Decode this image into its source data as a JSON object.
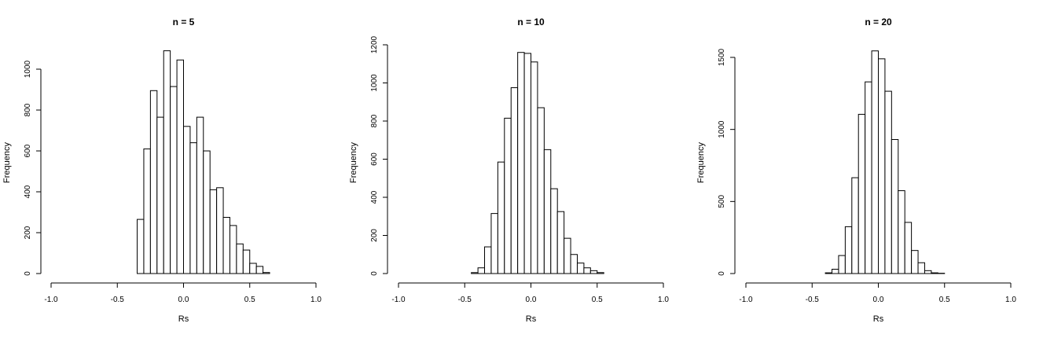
{
  "chart_data": [
    {
      "type": "bar",
      "title": "n = 5",
      "xlabel": "Rs",
      "ylabel": "Frequency",
      "xlim": [
        -1.0,
        1.0
      ],
      "xticks": [
        -1.0,
        -0.5,
        0.0,
        0.5,
        1.0
      ],
      "xtick_labels": [
        "-1.0",
        "-0.5",
        "0.0",
        "0.5",
        "1.0"
      ],
      "ylim": [
        0,
        1000
      ],
      "yticks": [
        0,
        200,
        400,
        600,
        800,
        1000
      ],
      "ytick_labels": [
        "0",
        "200",
        "400",
        "600",
        "800",
        "1000"
      ],
      "bin_width": 0.05,
      "bin_start": -0.35,
      "values": [
        265,
        610,
        895,
        765,
        1090,
        915,
        1045,
        720,
        640,
        765,
        600,
        410,
        420,
        275,
        235,
        145,
        115,
        50,
        35,
        5
      ],
      "grid": false,
      "legend": "none"
    },
    {
      "type": "bar",
      "title": "n = 10",
      "xlabel": "Rs",
      "ylabel": "Frequency",
      "xlim": [
        -1.0,
        1.0
      ],
      "xticks": [
        -1.0,
        -0.5,
        0.0,
        0.5,
        1.0
      ],
      "xtick_labels": [
        "-1.0",
        "-0.5",
        "0.0",
        "0.5",
        "1.0"
      ],
      "ylim": [
        0,
        1200
      ],
      "yticks": [
        0,
        200,
        400,
        600,
        800,
        1000,
        1200
      ],
      "ytick_labels": [
        "0",
        "200",
        "400",
        "600",
        "800",
        "1000",
        "1200"
      ],
      "bin_width": 0.05,
      "bin_start": -0.45,
      "values": [
        5,
        30,
        140,
        315,
        585,
        815,
        975,
        1160,
        1155,
        1110,
        870,
        650,
        445,
        325,
        185,
        100,
        55,
        30,
        15,
        5
      ],
      "grid": false,
      "legend": "none"
    },
    {
      "type": "bar",
      "title": "n = 20",
      "xlabel": "Rs",
      "ylabel": "Frequency",
      "xlim": [
        -1.0,
        1.0
      ],
      "xticks": [
        -1.0,
        -0.5,
        0.0,
        0.5,
        1.0
      ],
      "xtick_labels": [
        "-1.0",
        "-0.5",
        "0.0",
        "0.5",
        "1.0"
      ],
      "ylim": [
        0,
        1500
      ],
      "yticks": [
        0,
        500,
        1000,
        1500
      ],
      "ytick_labels": [
        "0",
        "500",
        "1000",
        "1500"
      ],
      "bin_width": 0.05,
      "bin_start": -0.4,
      "values": [
        5,
        30,
        125,
        325,
        665,
        1105,
        1330,
        1545,
        1490,
        1265,
        930,
        575,
        355,
        160,
        75,
        20,
        5,
        2
      ],
      "grid": false,
      "legend": "none"
    }
  ]
}
